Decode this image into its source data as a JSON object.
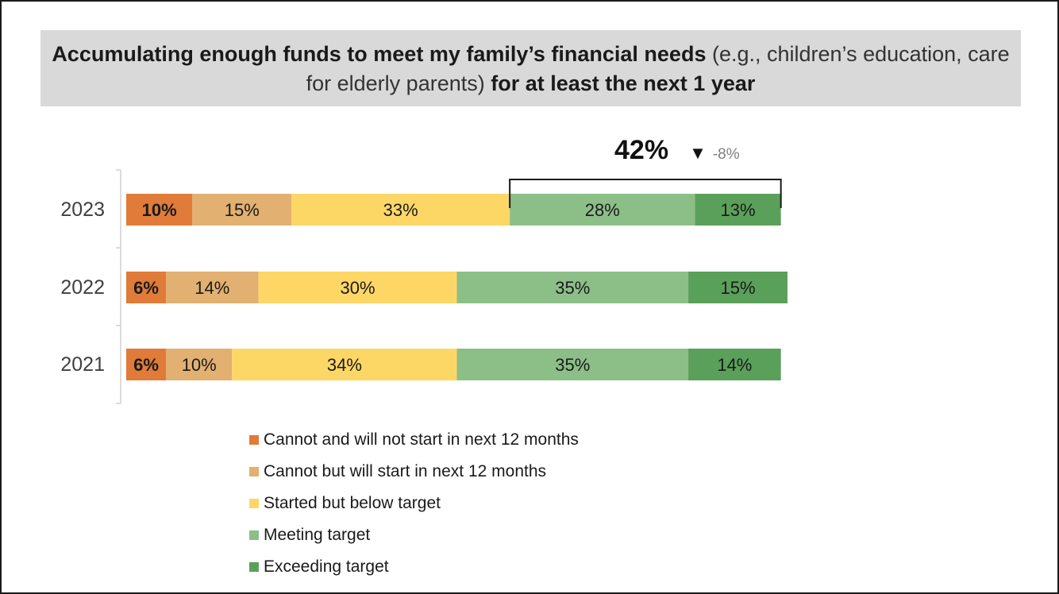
{
  "title": {
    "bold1": "Accumulating enough funds to meet my family’s financial needs",
    "normal": " (e.g., children’s education, care for elderly parents) ",
    "bold2": "for at least the next 1 year"
  },
  "summary": {
    "value": "42%",
    "arrow": "▼",
    "change": "-8%"
  },
  "chart_data": {
    "type": "bar",
    "orientation": "horizontal",
    "stacked": true,
    "categories": [
      "2023",
      "2022",
      "2021"
    ],
    "series": [
      {
        "name": "Cannot and will not start in next 12 months",
        "color": "#e07b39",
        "values": [
          10,
          6,
          6
        ],
        "labels": [
          "10%",
          "6%",
          "6%"
        ]
      },
      {
        "name": "Cannot but will start in next 12 months",
        "color": "#e2b070",
        "values": [
          15,
          14,
          10
        ],
        "labels": [
          "15%",
          "14%",
          "10%"
        ]
      },
      {
        "name": "Started but below target",
        "color": "#fdd766",
        "values": [
          33,
          30,
          34
        ],
        "labels": [
          "33%",
          "30%",
          "34%"
        ]
      },
      {
        "name": "Meeting target",
        "color": "#8cbf88",
        "values": [
          28,
          35,
          35
        ],
        "labels": [
          "28%",
          "35%",
          "35%"
        ]
      },
      {
        "name": "Exceeding target",
        "color": "#5aa05a",
        "values": [
          13,
          15,
          14
        ],
        "labels": [
          "13%",
          "15%",
          "14%"
        ]
      }
    ],
    "xlim": [
      0,
      100
    ],
    "grid": false,
    "legend_position": "bottom"
  }
}
